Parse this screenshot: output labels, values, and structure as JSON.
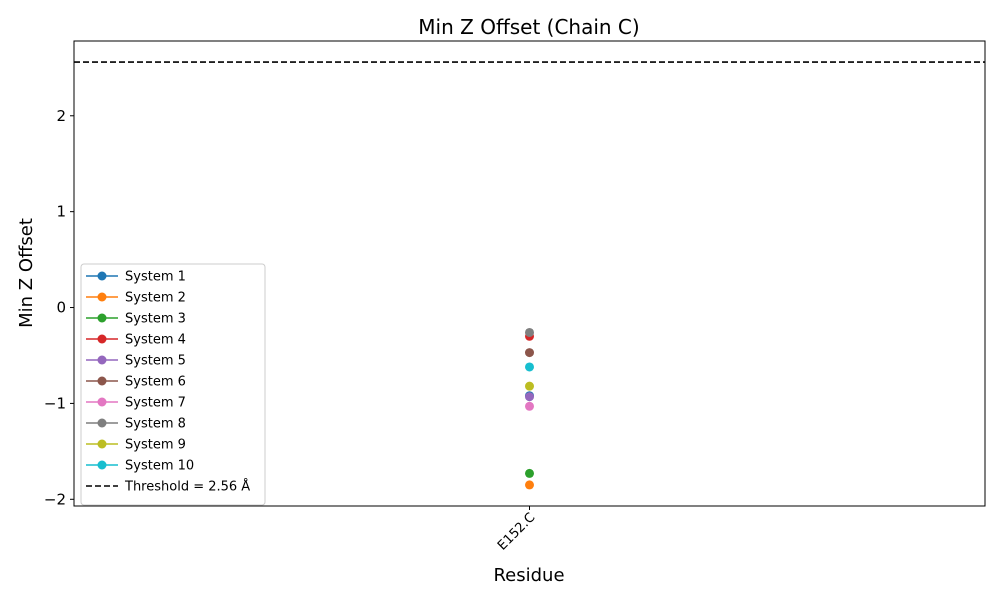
{
  "chart_data": {
    "type": "scatter",
    "title": "Min Z Offset (Chain C)",
    "xlabel": "Residue",
    "ylabel": "Min Z Offset",
    "categories": [
      "E152.C"
    ],
    "ylim": [
      -2.07,
      2.78
    ],
    "yticks": [
      -2,
      -1,
      0,
      1,
      2
    ],
    "ytick_labels": [
      "−2",
      "−1",
      "0",
      "1",
      "2"
    ],
    "grid": false,
    "legend_position": "lower-left",
    "threshold": {
      "label": "Threshold = 2.56 Å",
      "value": 2.56,
      "color": "#000000",
      "style": "dashed"
    },
    "series": [
      {
        "name": "System 1",
        "color": "#1f77b4",
        "values": [
          -0.92
        ]
      },
      {
        "name": "System 2",
        "color": "#ff7f0e",
        "values": [
          -1.85
        ]
      },
      {
        "name": "System 3",
        "color": "#2ca02c",
        "values": [
          -1.73
        ]
      },
      {
        "name": "System 4",
        "color": "#d62728",
        "values": [
          -0.3
        ]
      },
      {
        "name": "System 5",
        "color": "#9467bd",
        "values": [
          -0.93
        ]
      },
      {
        "name": "System 6",
        "color": "#8c564b",
        "values": [
          -0.47
        ]
      },
      {
        "name": "System 7",
        "color": "#e377c2",
        "values": [
          -1.03
        ]
      },
      {
        "name": "System 8",
        "color": "#7f7f7f",
        "values": [
          -0.26
        ]
      },
      {
        "name": "System 9",
        "color": "#bcbd22",
        "values": [
          -0.82
        ]
      },
      {
        "name": "System 10",
        "color": "#17becf",
        "values": [
          -0.62
        ]
      }
    ]
  }
}
